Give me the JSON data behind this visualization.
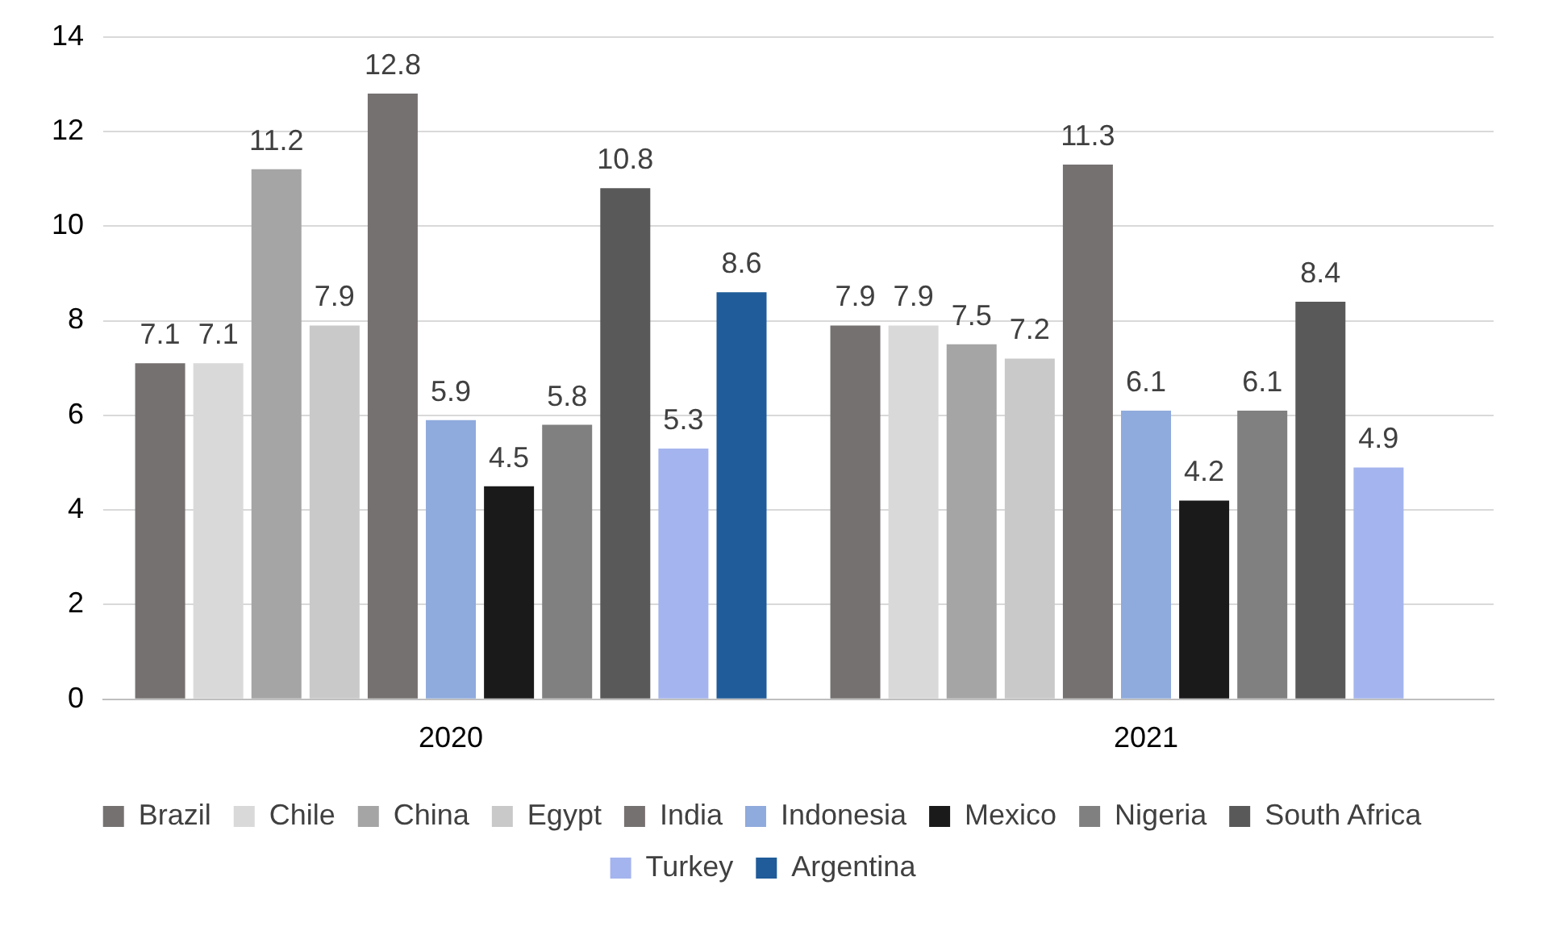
{
  "chart_data": {
    "type": "bar",
    "categories": [
      "2020",
      "2021"
    ],
    "series": [
      {
        "name": "Brazil",
        "color": "#767171",
        "values": [
          7.1,
          7.9
        ]
      },
      {
        "name": "Chile",
        "color": "#d9d9d9",
        "values": [
          7.1,
          7.9
        ]
      },
      {
        "name": "China",
        "color": "#a5a5a5",
        "values": [
          11.2,
          7.5
        ]
      },
      {
        "name": "Egypt",
        "color": "#c9c9c9",
        "values": [
          7.9,
          7.2
        ]
      },
      {
        "name": "India",
        "color": "#767171",
        "values": [
          12.8,
          11.3
        ]
      },
      {
        "name": "Indonesia",
        "color": "#8faadc",
        "values": [
          5.9,
          6.1
        ]
      },
      {
        "name": "Mexico",
        "color": "#1a1a1a",
        "values": [
          4.5,
          4.2
        ]
      },
      {
        "name": "Nigeria",
        "color": "#808080",
        "values": [
          5.8,
          6.1
        ]
      },
      {
        "name": "South Africa",
        "color": "#595959",
        "values": [
          10.8,
          8.4
        ]
      },
      {
        "name": "Turkey",
        "color": "#a4b4ee",
        "values": [
          5.3,
          4.9
        ]
      },
      {
        "name": "Argentina",
        "color": "#1f5c99",
        "values": [
          8.6,
          null
        ]
      }
    ],
    "ylim": [
      0,
      14
    ],
    "yticks": [
      0,
      2,
      4,
      6,
      8,
      10,
      12,
      14
    ],
    "grid": "y",
    "legend": "bottom",
    "data_labels": true
  }
}
